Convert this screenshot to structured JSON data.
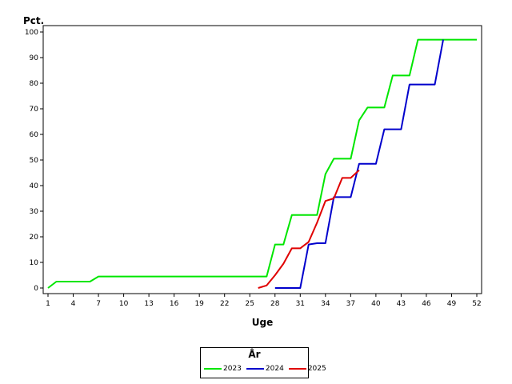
{
  "chart_data": {
    "type": "line",
    "ylabel": "Pct.",
    "xlabel": "Uge",
    "xlim": [
      1,
      52
    ],
    "ylim": [
      0,
      100
    ],
    "x_ticks": [
      1,
      4,
      7,
      10,
      13,
      16,
      19,
      22,
      25,
      28,
      31,
      34,
      37,
      40,
      43,
      46,
      49,
      52
    ],
    "y_ticks": [
      0,
      10,
      20,
      30,
      40,
      50,
      60,
      70,
      80,
      90,
      100
    ],
    "legend_title": "År",
    "legend_position": "bottom",
    "grid": false,
    "series": [
      {
        "name": "2023",
        "color": "#00e600",
        "x": [
          1,
          2,
          3,
          4,
          5,
          6,
          7,
          8,
          9,
          10,
          11,
          12,
          13,
          14,
          15,
          16,
          17,
          18,
          19,
          20,
          21,
          22,
          23,
          24,
          25,
          26,
          27,
          28,
          29,
          30,
          31,
          32,
          33,
          34,
          35,
          36,
          37,
          38,
          39,
          40,
          41,
          42,
          43,
          44,
          45,
          46,
          47,
          48,
          49,
          50,
          51,
          52
        ],
        "y": [
          0,
          2.5,
          2.5,
          2.5,
          2.5,
          2.5,
          4.5,
          4.5,
          4.5,
          4.5,
          4.5,
          4.5,
          4.5,
          4.5,
          4.5,
          4.5,
          4.5,
          4.5,
          4.5,
          4.5,
          4.5,
          4.5,
          4.5,
          4.5,
          4.5,
          4.5,
          4.5,
          17,
          17,
          28.5,
          28.5,
          28.5,
          28.5,
          44.5,
          50.5,
          50.5,
          50.5,
          65.5,
          70.5,
          70.5,
          70.5,
          83,
          83,
          83,
          97,
          97,
          97,
          97,
          97,
          97,
          97,
          97
        ]
      },
      {
        "name": "2024",
        "color": "#0000cc",
        "x": [
          28,
          29,
          30,
          31,
          32,
          33,
          34,
          35,
          36,
          37,
          38,
          39,
          40,
          41,
          42,
          43,
          44,
          45,
          46,
          47,
          48
        ],
        "y": [
          0,
          0,
          0,
          0,
          17,
          17.5,
          17.5,
          35.5,
          35.5,
          35.5,
          48.5,
          48.5,
          48.5,
          62,
          62,
          62,
          79.5,
          79.5,
          79.5,
          79.5,
          97
        ]
      },
      {
        "name": "2025",
        "color": "#e00000",
        "x": [
          26,
          27,
          28,
          29,
          30,
          31,
          32,
          33,
          34,
          35,
          36,
          37,
          38
        ],
        "y": [
          0,
          1,
          5,
          9.5,
          15.5,
          15.5,
          18,
          25.5,
          34,
          35,
          43,
          43,
          46
        ]
      }
    ]
  }
}
